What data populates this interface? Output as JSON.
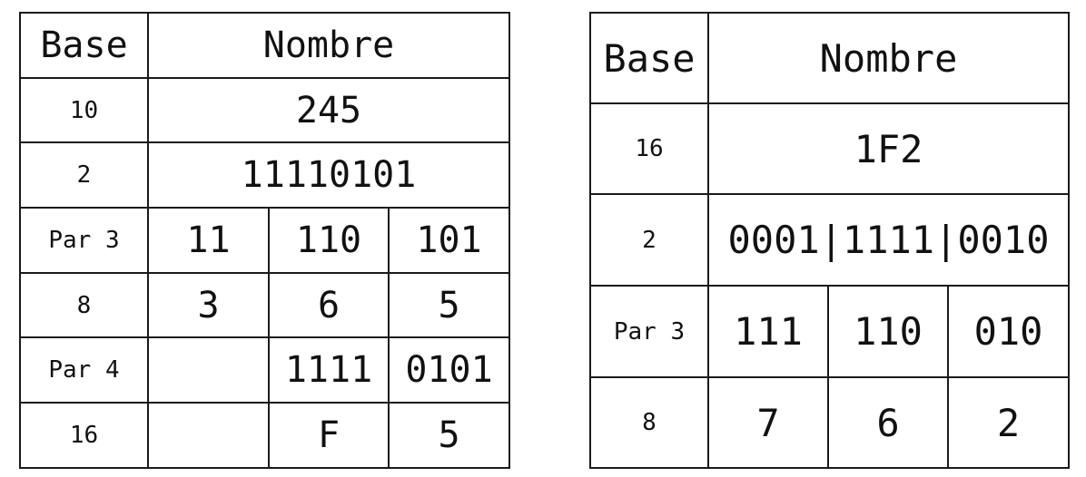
{
  "table1": {
    "header": {
      "base": "Base",
      "nombre": "Nombre"
    },
    "rows": [
      {
        "base": "10",
        "value": "245"
      },
      {
        "base": "2",
        "value": "11110101"
      },
      {
        "base": "Par 3",
        "cells": [
          "11",
          "110",
          "101"
        ]
      },
      {
        "base": "8",
        "cells": [
          "3",
          "6",
          "5"
        ]
      },
      {
        "base": "Par 4",
        "cells": [
          "",
          "1111",
          "0101"
        ]
      },
      {
        "base": "16",
        "cells": [
          "",
          "F",
          "5"
        ]
      }
    ]
  },
  "table2": {
    "header": {
      "base": "Base",
      "nombre": "Nombre"
    },
    "rows": [
      {
        "base": "16",
        "value": "1F2"
      },
      {
        "base": "2",
        "value": "0001|1111|0010"
      },
      {
        "base": "Par 3",
        "cells": [
          "111",
          "110",
          "010"
        ]
      },
      {
        "base": "8",
        "cells": [
          "7",
          "6",
          "2"
        ]
      }
    ]
  }
}
